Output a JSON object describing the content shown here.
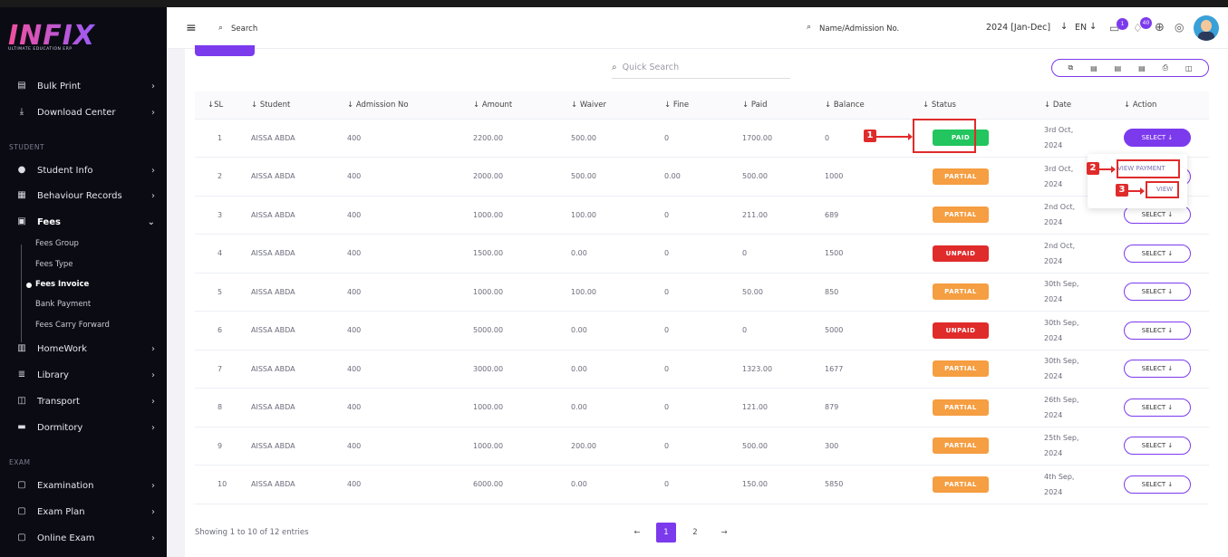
{
  "brand": {
    "logo": "INFIX",
    "tagline": "ULTIMATE EDUCATION ERP"
  },
  "sidebar": {
    "top_items": [
      {
        "label": "Bulk Print",
        "icon": "print-icon"
      },
      {
        "label": "Download Center",
        "icon": "download-icon"
      }
    ],
    "sections": {
      "student": "STUDENT",
      "exam": "EXAM"
    },
    "student_items": [
      {
        "label": "Student Info",
        "icon": "user-icon"
      },
      {
        "label": "Behaviour Records",
        "icon": "records-icon"
      },
      {
        "label": "Fees",
        "icon": "money-icon"
      }
    ],
    "fees_sub": [
      "Fees Group",
      "Fees Type",
      "Fees Invoice",
      "Bank Payment",
      "Fees Carry Forward"
    ],
    "more_items": [
      {
        "label": "HomeWork",
        "icon": "book-icon"
      },
      {
        "label": "Library",
        "icon": "library-icon"
      },
      {
        "label": "Transport",
        "icon": "bus-icon"
      },
      {
        "label": "Dormitory",
        "icon": "bed-icon"
      }
    ],
    "exam_items": [
      {
        "label": "Examination",
        "icon": "exam-icon"
      },
      {
        "label": "Exam Plan",
        "icon": "plan-icon"
      },
      {
        "label": "Online Exam",
        "icon": "online-icon"
      }
    ]
  },
  "header": {
    "search": "Search",
    "name_search": "Name/Admission No.",
    "session": "2024 [Jan-Dec]",
    "lang": "EN",
    "msg_count": "1",
    "notif_count": "40"
  },
  "toolbar": {
    "quick_search": "Quick Search"
  },
  "table": {
    "headers": [
      "SL",
      "Student",
      "Admission No",
      "Amount",
      "Waiver",
      "Fine",
      "Paid",
      "Balance",
      "Status",
      "Date",
      "Action"
    ],
    "rows": [
      [
        "1",
        "AISSA ABDA",
        "400",
        "2200.00",
        "500.00",
        "0",
        "1700.00",
        "0",
        "PAID",
        "3rd Oct,",
        "2024"
      ],
      [
        "2",
        "AISSA ABDA",
        "400",
        "2000.00",
        "500.00",
        "0.00",
        "500.00",
        "1000",
        "PARTIAL",
        "3rd Oct,",
        "2024"
      ],
      [
        "3",
        "AISSA ABDA",
        "400",
        "1000.00",
        "100.00",
        "0",
        "211.00",
        "689",
        "PARTIAL",
        "2nd Oct,",
        "2024"
      ],
      [
        "4",
        "AISSA ABDA",
        "400",
        "1500.00",
        "0.00",
        "0",
        "0",
        "1500",
        "UNPAID",
        "2nd Oct,",
        "2024"
      ],
      [
        "5",
        "AISSA ABDA",
        "400",
        "1000.00",
        "100.00",
        "0",
        "50.00",
        "850",
        "PARTIAL",
        "30th Sep,",
        "2024"
      ],
      [
        "6",
        "AISSA ABDA",
        "400",
        "5000.00",
        "0.00",
        "0",
        "0",
        "5000",
        "UNPAID",
        "30th Sep,",
        "2024"
      ],
      [
        "7",
        "AISSA ABDA",
        "400",
        "3000.00",
        "0.00",
        "0",
        "1323.00",
        "1677",
        "PARTIAL",
        "30th Sep,",
        "2024"
      ],
      [
        "8",
        "AISSA ABDA",
        "400",
        "1000.00",
        "0.00",
        "0",
        "121.00",
        "879",
        "PARTIAL",
        "26th Sep,",
        "2024"
      ],
      [
        "9",
        "AISSA ABDA",
        "400",
        "1000.00",
        "200.00",
        "0",
        "500.00",
        "300",
        "PARTIAL",
        "25th Sep,",
        "2024"
      ],
      [
        "10",
        "AISSA ABDA",
        "400",
        "6000.00",
        "0.00",
        "0",
        "150.00",
        "5850",
        "PARTIAL",
        "4th Sep,",
        "2024"
      ]
    ],
    "action_label": "SELECT"
  },
  "dropdown": {
    "view_payment": "VIEW PAYMENT",
    "view": "VIEW"
  },
  "annotations": [
    "1",
    "2",
    "3"
  ],
  "footer": {
    "showing": "Showing 1 to 10 of 12 entries",
    "pages": [
      "1",
      "2"
    ]
  },
  "colors": {
    "accent": "#7c3aed",
    "paid": "#22c55e",
    "partial": "#f59e42",
    "unpaid": "#e02b2b"
  }
}
